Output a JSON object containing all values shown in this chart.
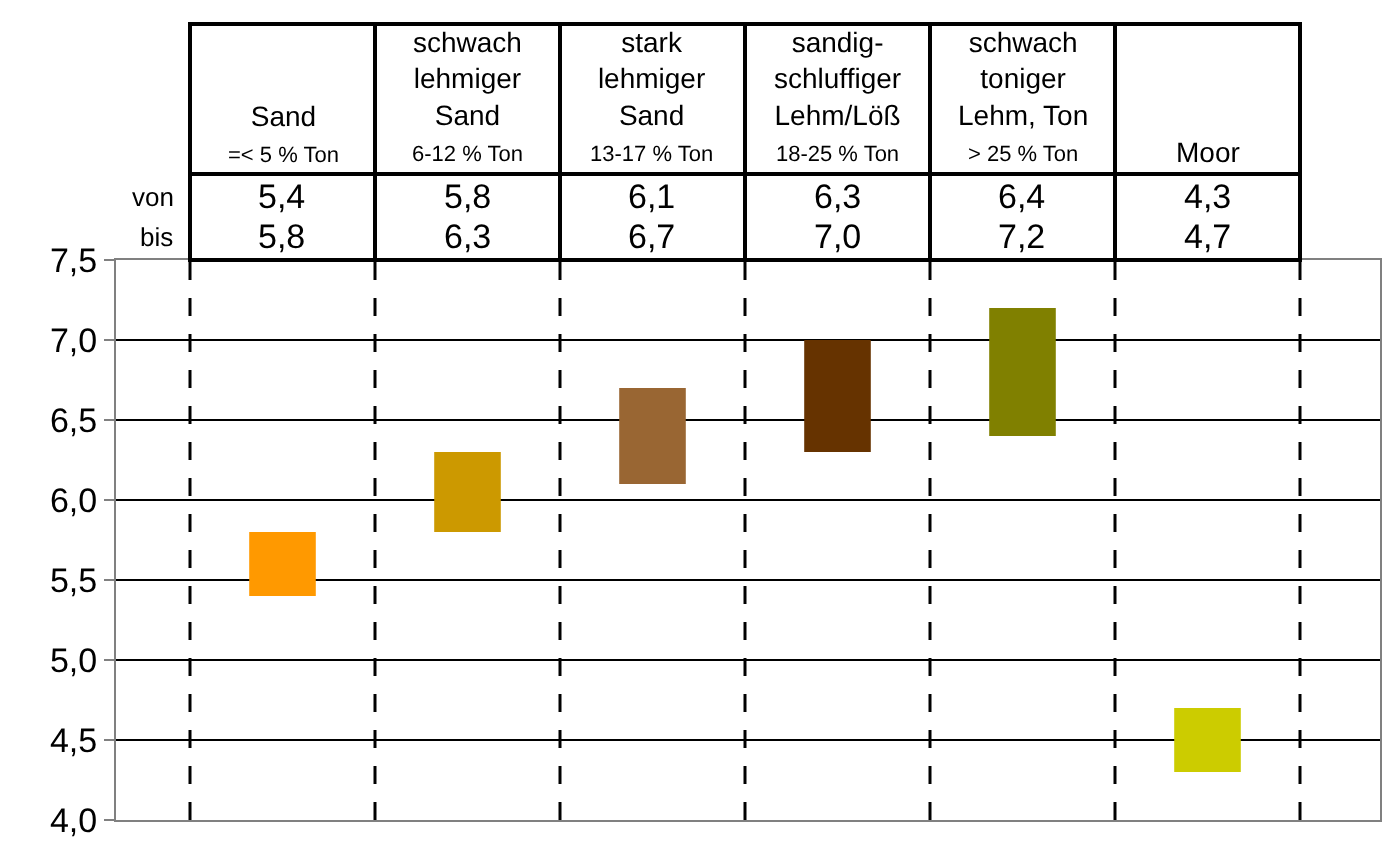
{
  "chart_data": {
    "type": "bar",
    "categories": [
      "Sand\n=< 5 % Ton",
      "schwach\nlehmiger\nSand\n6-12 % Ton",
      "stark\nlehmiger\nSand\n13-17 % Ton",
      "sandig-\nschluffiger\nLehm/Löß\n18-25 % Ton",
      "schwach\ntoniger\nLehm, Ton\n> 25 % Ton",
      "Moor"
    ],
    "base": [
      5.4,
      5.8,
      6.1,
      6.3,
      6.4,
      4.3
    ],
    "values": [
      0.4,
      0.5,
      0.6,
      0.7,
      0.8,
      0.4
    ],
    "colors": [
      "#ff9900",
      "#cc9900",
      "#996633",
      "#663300",
      "#808000",
      "#cccc00"
    ],
    "ylim": [
      4.0,
      7.5
    ],
    "yticks": [
      {
        "value": 4.0,
        "label": "4,0"
      },
      {
        "value": 4.5,
        "label": "4,5"
      },
      {
        "value": 5.0,
        "label": "5,0"
      },
      {
        "value": 5.5,
        "label": "5,5"
      },
      {
        "value": 6.0,
        "label": "6,0"
      },
      {
        "value": 6.5,
        "label": "6,5"
      },
      {
        "value": 7.0,
        "label": "7,0"
      },
      {
        "value": 7.5,
        "label": "7,5"
      }
    ],
    "grid": true,
    "tick_labels": "y",
    "annotations": [
      "von",
      "bis",
      "5,4",
      "5,8",
      "6,1",
      "6,3",
      "6,4",
      "4,3",
      "5,8",
      "6,3",
      "6,7",
      "7,0",
      "7,2",
      "4,7"
    ]
  }
}
